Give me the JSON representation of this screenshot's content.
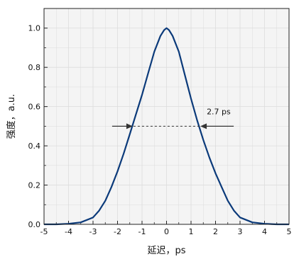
{
  "chart_data": {
    "type": "line",
    "title": "",
    "xlabel": "延迟，ps",
    "ylabel": "强度，a.u.",
    "xlim": [
      -5,
      5
    ],
    "ylim": [
      0.0,
      1.1
    ],
    "grid": true,
    "x_ticks": [
      -5,
      -4,
      -3,
      -2,
      -1,
      0,
      1,
      2,
      3,
      4,
      5
    ],
    "x_tick_labels": [
      "-5",
      "-4",
      "-3",
      "-2",
      "-1",
      "0",
      "1",
      "2",
      "3",
      "4",
      "5"
    ],
    "y_ticks": [
      0.0,
      0.2,
      0.4,
      0.6,
      0.8,
      1.0
    ],
    "y_tick_labels": [
      "0.0",
      "0.2",
      "0.4",
      "0.6",
      "0.8",
      "1.0"
    ],
    "series": [
      {
        "color": "#0b3a7a",
        "x": [
          -5.0,
          -4.5,
          -4.0,
          -3.5,
          -3.0,
          -2.75,
          -2.5,
          -2.25,
          -2.0,
          -1.75,
          -1.5,
          -1.25,
          -1.0,
          -0.75,
          -0.5,
          -0.25,
          -0.1,
          0.0,
          0.1,
          0.25,
          0.5,
          0.75,
          1.0,
          1.25,
          1.5,
          1.75,
          2.0,
          2.25,
          2.5,
          2.75,
          3.0,
          3.5,
          4.0,
          4.5,
          5.0
        ],
        "y": [
          0.0,
          0.0,
          0.003,
          0.01,
          0.035,
          0.07,
          0.12,
          0.19,
          0.27,
          0.36,
          0.46,
          0.56,
          0.66,
          0.77,
          0.88,
          0.96,
          0.99,
          1.0,
          0.99,
          0.96,
          0.88,
          0.76,
          0.64,
          0.53,
          0.43,
          0.34,
          0.26,
          0.19,
          0.12,
          0.07,
          0.035,
          0.01,
          0.003,
          0.0,
          0.0
        ]
      }
    ],
    "annotation": {
      "label": "2.7 ps",
      "fwhm_ps": 2.7,
      "level": 0.5,
      "x_from": -1.35,
      "x_to": 1.35,
      "style": "dashed line with inward arrows"
    },
    "colors": {
      "line": "#0b3a7a",
      "plot_background": "#f4f4f4",
      "grid": "#dcdcdc",
      "annotation": "#333333"
    }
  }
}
